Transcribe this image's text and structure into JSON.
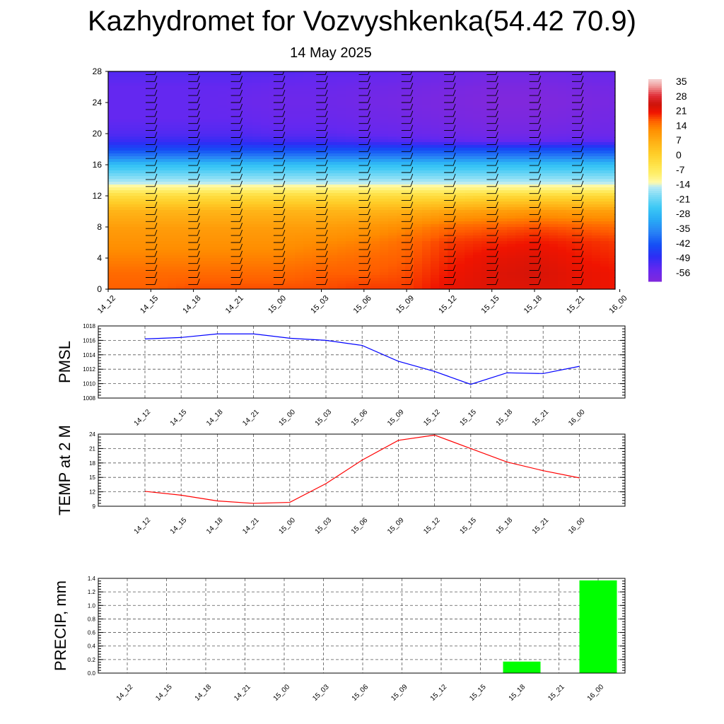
{
  "header": {
    "title": "Kazhydromet for Vozvyshkenka(54.42 70.9)",
    "date": "14 May 2025"
  },
  "chart_data": [
    {
      "type": "heatmap",
      "name": "cross-section",
      "x_ticks": [
        "14_12",
        "14_15",
        "14_18",
        "14_21",
        "15_00",
        "15_03",
        "15_06",
        "15_09",
        "15_12",
        "15_15",
        "15_18",
        "15_21",
        "16_00"
      ],
      "y_ticks": [
        "0",
        "4",
        "8",
        "12",
        "16",
        "20",
        "24",
        "28"
      ],
      "ylim": [
        0,
        28
      ],
      "colorbar_labels": [
        "35",
        "28",
        "21",
        "14",
        "7",
        "0",
        "-7",
        "-14",
        "-21",
        "-28",
        "-35",
        "-42",
        "-49",
        "-56"
      ],
      "colorbar_range": [
        -60,
        38
      ],
      "levels": [
        0,
        2,
        4,
        6,
        8,
        10,
        12,
        13,
        14,
        16,
        17,
        18,
        19,
        20,
        22,
        24,
        26,
        28
      ],
      "temperature_profile": [
        [
          18,
          19,
          19,
          19,
          19,
          20,
          20,
          23,
          24,
          24,
          23,
          22,
          22
        ],
        [
          17,
          17,
          17,
          17,
          18,
          18,
          19,
          22,
          24,
          25,
          23,
          22,
          22
        ],
        [
          15,
          15,
          15,
          15,
          16,
          17,
          18,
          21,
          23,
          24,
          22,
          21,
          21
        ],
        [
          13,
          13,
          13,
          13,
          14,
          15,
          17,
          20,
          21,
          22,
          21,
          20,
          20
        ],
        [
          11,
          11,
          11,
          11,
          11,
          12,
          14,
          17,
          18,
          19,
          18,
          17,
          17
        ],
        [
          7,
          7,
          7,
          7,
          7,
          7,
          8,
          10,
          11,
          12,
          11,
          11,
          11
        ],
        [
          -2,
          -2,
          -2,
          -2,
          -2,
          -2,
          -2,
          -2,
          -1,
          -1,
          -1,
          -1,
          -1
        ],
        [
          -10,
          -10,
          -10,
          -10,
          -10,
          -10,
          -10,
          -10,
          -10,
          -10,
          -10,
          -10,
          -10
        ],
        [
          -16,
          -16,
          -16,
          -16,
          -16,
          -16,
          -16,
          -16,
          -16,
          -16,
          -16,
          -16,
          -16
        ],
        [
          -26,
          -26,
          -26,
          -26,
          -26,
          -26,
          -26,
          -26,
          -26,
          -26,
          -26,
          -26,
          -26
        ],
        [
          -36,
          -36,
          -36,
          -36,
          -36,
          -36,
          -36,
          -36,
          -36,
          -36,
          -36,
          -36,
          -36
        ],
        [
          -43,
          -43,
          -43,
          -43,
          -43,
          -43,
          -43,
          -43,
          -43,
          -43,
          -43,
          -43,
          -43
        ],
        [
          -49,
          -49,
          -49,
          -50,
          -50,
          -51,
          -52,
          -53,
          -54,
          -54,
          -53,
          -53,
          -52
        ],
        [
          -52,
          -52,
          -52,
          -53,
          -53,
          -54,
          -55,
          -56,
          -57,
          -57,
          -56,
          -56,
          -55
        ],
        [
          -54,
          -54,
          -54,
          -55,
          -55,
          -56,
          -57,
          -58,
          -59,
          -59,
          -58,
          -57,
          -56
        ],
        [
          -54,
          -54,
          -55,
          -56,
          -56,
          -57,
          -58,
          -59,
          -60,
          -60,
          -59,
          -58,
          -57
        ],
        [
          -54,
          -54,
          -54,
          -55,
          -55,
          -56,
          -57,
          -58,
          -59,
          -59,
          -58,
          -57,
          -56
        ],
        [
          -52,
          -52,
          -52,
          -52,
          -53,
          -53,
          -54,
          -55,
          -56,
          -56,
          -55,
          -54,
          -53
        ]
      ]
    },
    {
      "type": "line",
      "name": "pmsl",
      "ylabel": "PMSL",
      "categories": [
        "14_12",
        "14_15",
        "14_18",
        "14_21",
        "15_00",
        "15_03",
        "15_06",
        "15_09",
        "15_12",
        "15_15",
        "15_18",
        "15_21",
        "16_00"
      ],
      "values": [
        1016.2,
        1016.4,
        1016.9,
        1016.9,
        1016.3,
        1016.0,
        1015.3,
        1013.1,
        1011.7,
        1009.9,
        1011.5,
        1011.4,
        1012.4
      ],
      "ylim": [
        1008,
        1018
      ],
      "y_ticks": [
        "1008",
        "1010",
        "1012",
        "1014",
        "1016",
        "1018"
      ],
      "color": "#0000ff",
      "grid": true
    },
    {
      "type": "line",
      "name": "temp",
      "ylabel": "TEMP at 2 M",
      "categories": [
        "14_12",
        "14_15",
        "14_18",
        "14_21",
        "15_00",
        "15_03",
        "15_06",
        "15_09",
        "15_12",
        "15_15",
        "15_18",
        "15_21",
        "16_00"
      ],
      "values": [
        12.1,
        11.3,
        10.1,
        9.6,
        9.8,
        13.7,
        18.6,
        22.7,
        23.8,
        21.0,
        18.2,
        16.4,
        14.9
      ],
      "ylim": [
        9,
        24
      ],
      "y_ticks": [
        "9",
        "12",
        "15",
        "18",
        "21",
        "24"
      ],
      "color": "#ff0000",
      "grid": true
    },
    {
      "type": "bar",
      "name": "precip",
      "ylabel": "PRECIP, mm",
      "categories": [
        "14_12",
        "14_15",
        "14_18",
        "14_21",
        "15_00",
        "15_03",
        "15_06",
        "15_09",
        "15_12",
        "15_15",
        "15_18",
        "15_21",
        "16_00"
      ],
      "values": [
        0,
        0,
        0,
        0,
        0,
        0,
        0,
        0,
        0,
        0,
        0.17,
        0,
        1.37
      ],
      "ylim": [
        0,
        1.4
      ],
      "y_ticks": [
        "0.0",
        "0.2",
        "0.4",
        "0.6",
        "0.8",
        "1.0",
        "1.2",
        "1.4"
      ],
      "color": "#00ff00",
      "grid": true
    }
  ]
}
